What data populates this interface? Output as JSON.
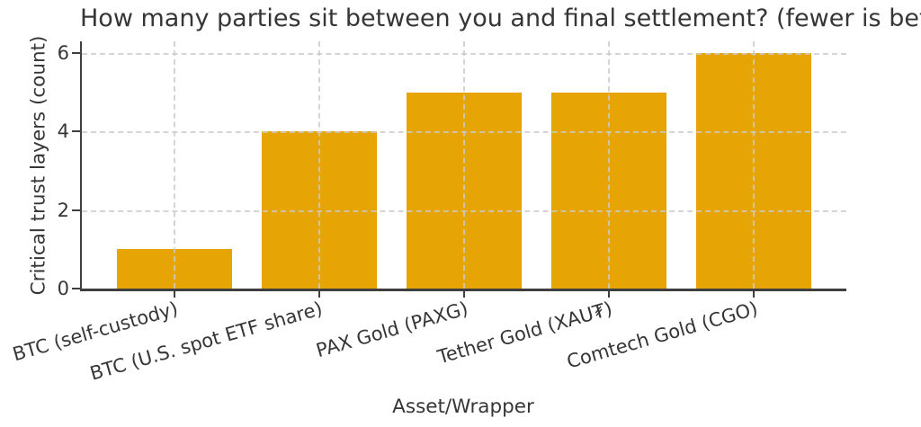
{
  "chart_data": {
    "type": "bar",
    "title": "How many parties sit between you and final settlement? (fewer is better)",
    "xlabel": "Asset/Wrapper",
    "ylabel": "Critical trust layers (count)",
    "categories": [
      "BTC (self-custody)",
      "BTC (U.S. spot ETF share)",
      "PAX Gold (PAXG)",
      "Tether Gold (XAU₮)",
      "Comtech Gold (CGO)"
    ],
    "values": [
      1,
      4,
      5,
      5,
      6
    ],
    "yticks": [
      0,
      2,
      4,
      6
    ],
    "ylim": [
      0,
      6.3
    ],
    "bar_width_fraction": 0.8,
    "x_tick_rotation_deg": 16,
    "grid": true,
    "grid_style": "dashed",
    "legend": null,
    "colors": {
      "bar": "#e6a405",
      "grid": "#cbcbcb",
      "spine": "#3f3f3f",
      "text": "#363636"
    }
  }
}
